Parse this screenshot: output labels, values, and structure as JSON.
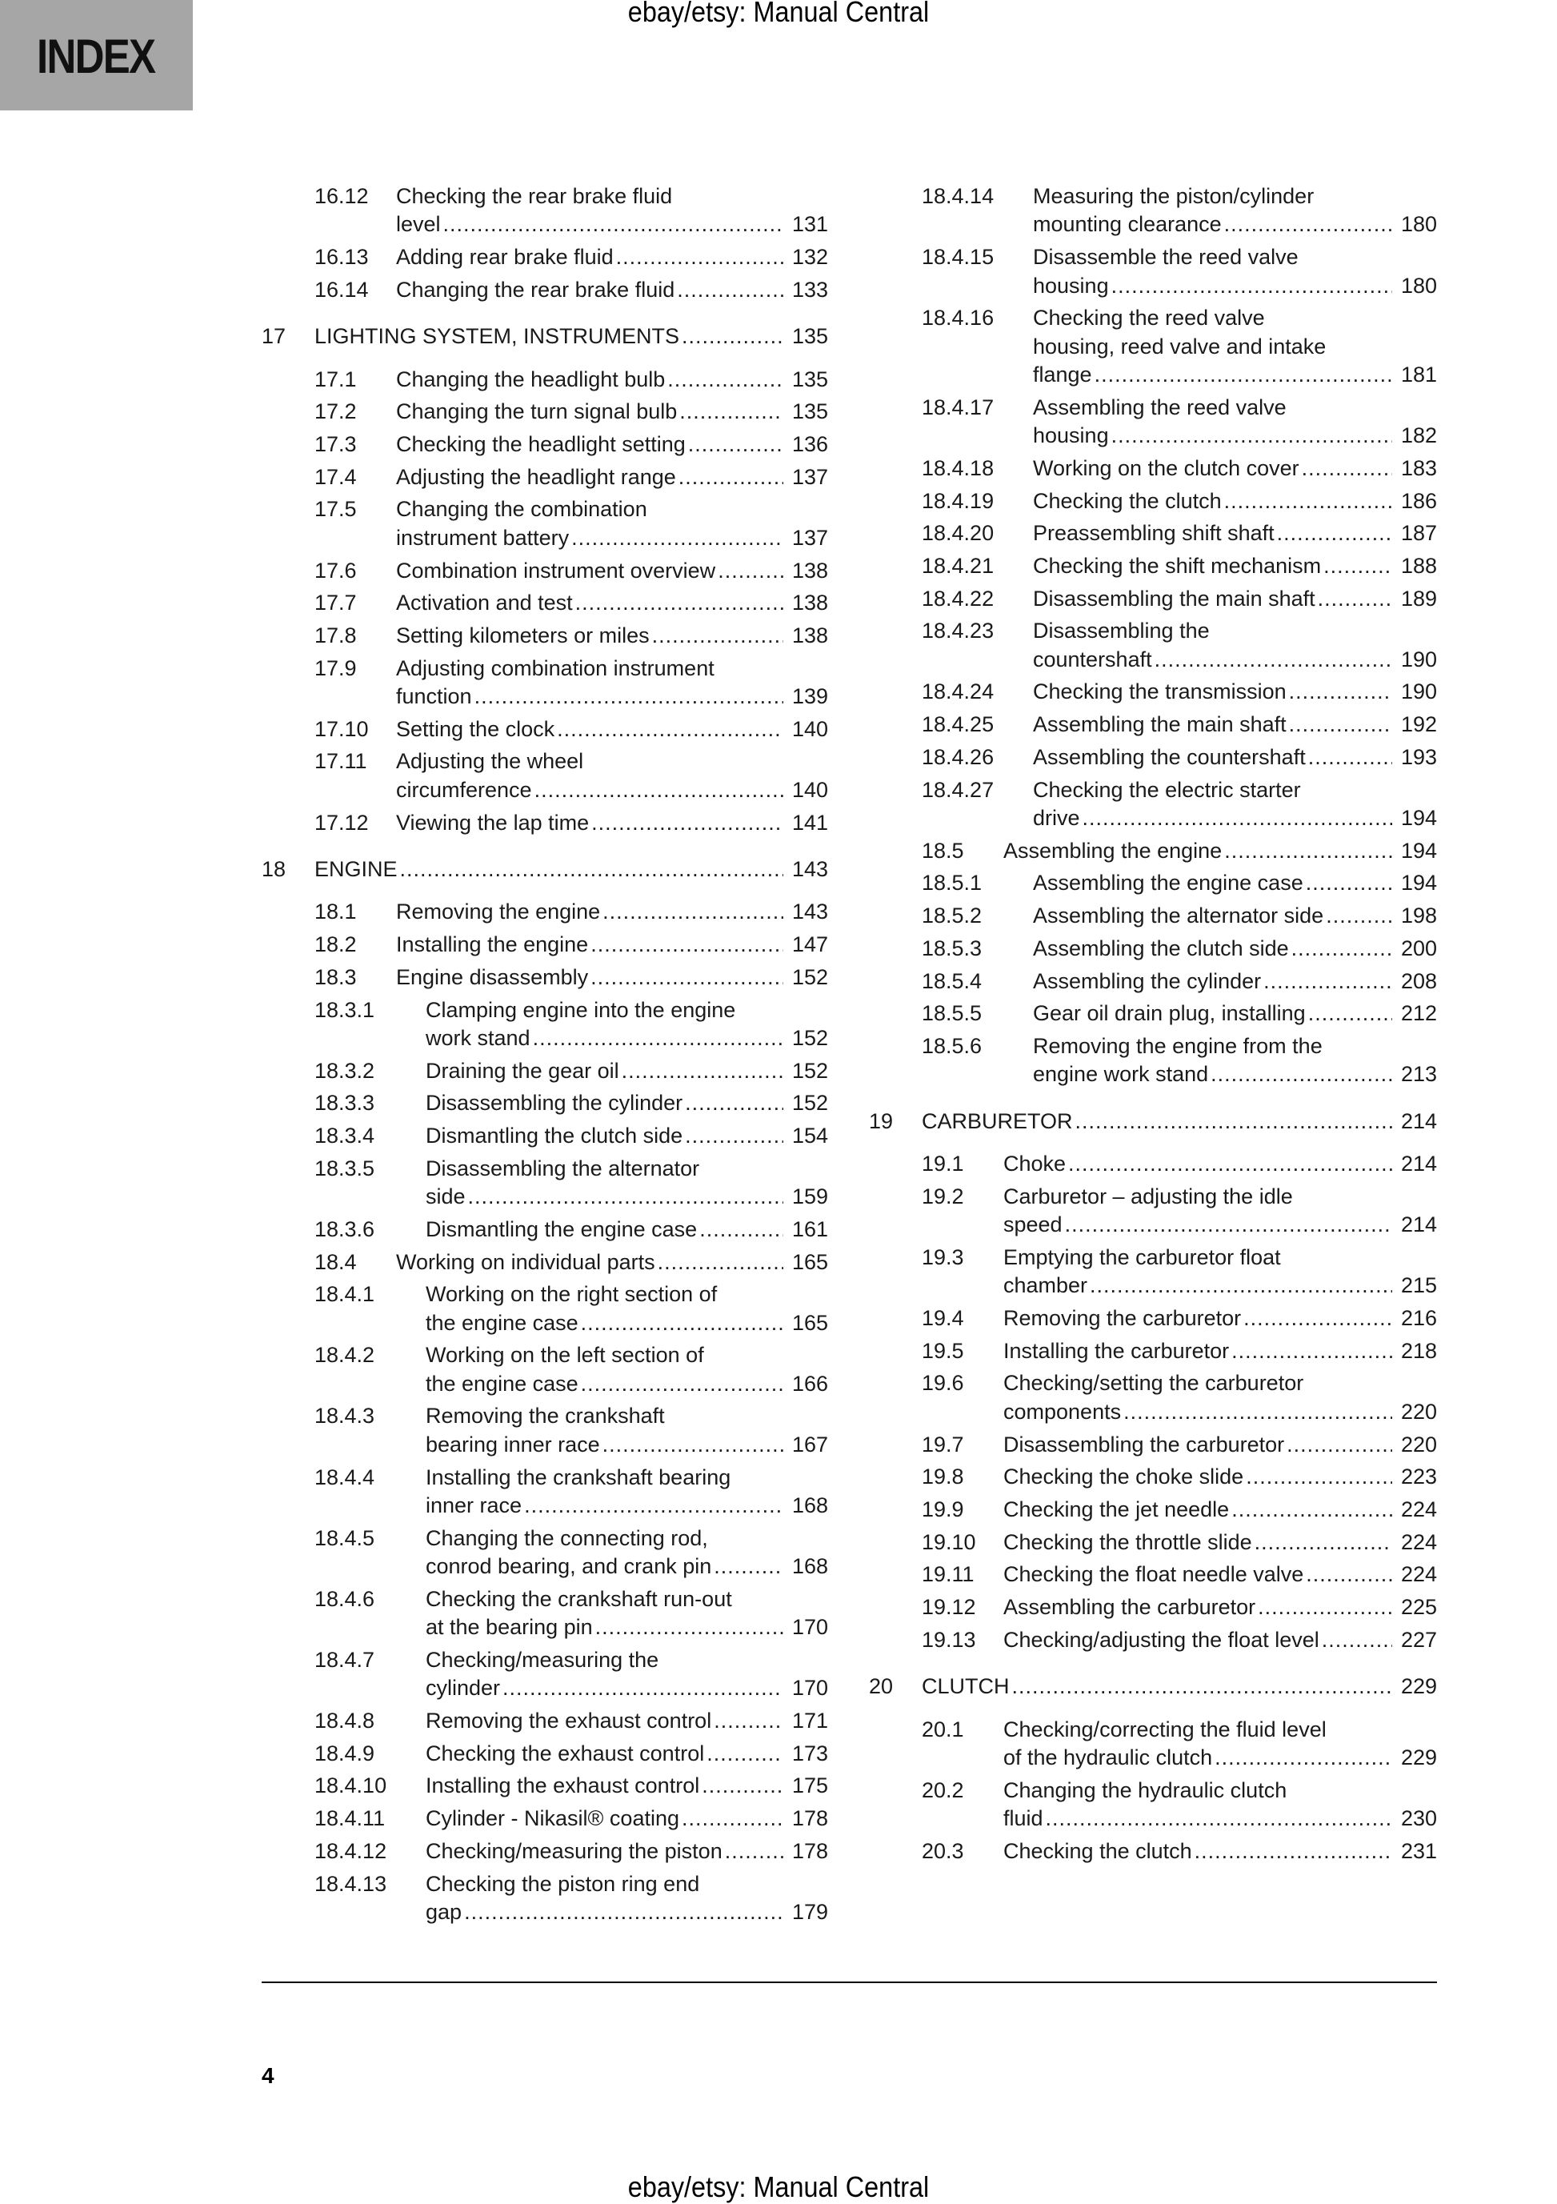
{
  "header": {
    "watermark": "ebay/etsy: Manual Central",
    "section_tab": "INDEX"
  },
  "footer": {
    "page_number": "4",
    "watermark": "ebay/etsy: Manual Central"
  },
  "colors": {
    "tab_background": "#a6a6a6",
    "text": "#1a1a1a"
  },
  "left": [
    {
      "num": "16.12",
      "level": 2,
      "title": [
        "Checking the rear brake fluid",
        "level"
      ],
      "page": "131"
    },
    {
      "num": "16.13",
      "level": 2,
      "title": [
        "Adding rear brake fluid"
      ],
      "page": "132"
    },
    {
      "num": "16.14",
      "level": 2,
      "title": [
        "Changing the rear brake fluid"
      ],
      "page": "133"
    },
    {
      "num": "17",
      "level": 1,
      "title": [
        "LIGHTING SYSTEM, INSTRUMENTS"
      ],
      "page": "135"
    },
    {
      "num": "17.1",
      "level": 2,
      "title": [
        "Changing the headlight bulb"
      ],
      "page": "135"
    },
    {
      "num": "17.2",
      "level": 2,
      "title": [
        "Changing the turn signal bulb"
      ],
      "page": "135"
    },
    {
      "num": "17.3",
      "level": 2,
      "title": [
        "Checking the headlight setting"
      ],
      "page": "136"
    },
    {
      "num": "17.4",
      "level": 2,
      "title": [
        "Adjusting the headlight range"
      ],
      "page": "137"
    },
    {
      "num": "17.5",
      "level": 2,
      "title": [
        "Changing the combination",
        "instrument battery"
      ],
      "page": "137"
    },
    {
      "num": "17.6",
      "level": 2,
      "title": [
        "Combination instrument overview"
      ],
      "page": "138"
    },
    {
      "num": "17.7",
      "level": 2,
      "title": [
        "Activation and test"
      ],
      "page": "138"
    },
    {
      "num": "17.8",
      "level": 2,
      "title": [
        "Setting kilometers or miles"
      ],
      "page": "138"
    },
    {
      "num": "17.9",
      "level": 2,
      "title": [
        "Adjusting combination instrument",
        "function"
      ],
      "page": "139"
    },
    {
      "num": "17.10",
      "level": 2,
      "title": [
        "Setting the clock"
      ],
      "page": "140"
    },
    {
      "num": "17.11",
      "level": 2,
      "title": [
        "Adjusting the wheel",
        "circumference"
      ],
      "page": "140"
    },
    {
      "num": "17.12",
      "level": 2,
      "title": [
        "Viewing the lap time"
      ],
      "page": "141"
    },
    {
      "num": "18",
      "level": 1,
      "title": [
        "ENGINE"
      ],
      "page": "143"
    },
    {
      "num": "18.1",
      "level": 2,
      "title": [
        "Removing the engine"
      ],
      "page": "143"
    },
    {
      "num": "18.2",
      "level": 2,
      "title": [
        "Installing the engine"
      ],
      "page": "147"
    },
    {
      "num": "18.3",
      "level": 2,
      "title": [
        "Engine disassembly"
      ],
      "page": "152"
    },
    {
      "num": "18.3.1",
      "level": 3,
      "title": [
        "Clamping engine into the engine",
        "work stand"
      ],
      "page": "152"
    },
    {
      "num": "18.3.2",
      "level": 3,
      "title": [
        "Draining the gear oil"
      ],
      "page": "152"
    },
    {
      "num": "18.3.3",
      "level": 3,
      "title": [
        "Disassembling the cylinder"
      ],
      "page": "152"
    },
    {
      "num": "18.3.4",
      "level": 3,
      "title": [
        "Dismantling the clutch side"
      ],
      "page": "154"
    },
    {
      "num": "18.3.5",
      "level": 3,
      "title": [
        "Disassembling the alternator",
        "side"
      ],
      "page": "159"
    },
    {
      "num": "18.3.6",
      "level": 3,
      "title": [
        "Dismantling the engine case"
      ],
      "page": "161"
    },
    {
      "num": "18.4",
      "level": 2,
      "title": [
        "Working on individual parts"
      ],
      "page": "165"
    },
    {
      "num": "18.4.1",
      "level": 3,
      "title": [
        "Working on the right section of",
        "the engine case"
      ],
      "page": "165"
    },
    {
      "num": "18.4.2",
      "level": 3,
      "title": [
        "Working on the left section of",
        "the engine case"
      ],
      "page": "166"
    },
    {
      "num": "18.4.3",
      "level": 3,
      "title": [
        "Removing the crankshaft",
        "bearing inner race"
      ],
      "page": "167"
    },
    {
      "num": "18.4.4",
      "level": 3,
      "title": [
        "Installing the crankshaft bearing",
        "inner race"
      ],
      "page": "168"
    },
    {
      "num": "18.4.5",
      "level": 3,
      "title": [
        "Changing the connecting rod,",
        "conrod bearing, and crank pin"
      ],
      "page": "168"
    },
    {
      "num": "18.4.6",
      "level": 3,
      "title": [
        "Checking the crankshaft run-out",
        "at the bearing pin"
      ],
      "page": "170"
    },
    {
      "num": "18.4.7",
      "level": 3,
      "title": [
        "Checking/measuring the",
        "cylinder"
      ],
      "page": "170"
    },
    {
      "num": "18.4.8",
      "level": 3,
      "title": [
        "Removing the exhaust control"
      ],
      "page": "171"
    },
    {
      "num": "18.4.9",
      "level": 3,
      "title": [
        "Checking the exhaust control"
      ],
      "page": "173"
    },
    {
      "num": "18.4.10",
      "level": 3,
      "title": [
        "Installing the exhaust control"
      ],
      "page": "175"
    },
    {
      "num": "18.4.11",
      "level": 3,
      "title": [
        "Cylinder - Nikasil® coating"
      ],
      "page": "178"
    },
    {
      "num": "18.4.12",
      "level": 3,
      "title": [
        "Checking/measuring the piston"
      ],
      "page": "178"
    },
    {
      "num": "18.4.13",
      "level": 3,
      "title": [
        "Checking the piston ring end",
        "gap"
      ],
      "page": "179"
    }
  ],
  "right": [
    {
      "num": "18.4.14",
      "level": 3,
      "title": [
        "Measuring the piston/cylinder",
        "mounting clearance"
      ],
      "page": "180"
    },
    {
      "num": "18.4.15",
      "level": 3,
      "title": [
        "Disassemble the reed valve",
        "housing"
      ],
      "page": "180"
    },
    {
      "num": "18.4.16",
      "level": 3,
      "title": [
        "Checking the reed valve",
        "housing, reed valve and intake",
        "flange"
      ],
      "page": "181"
    },
    {
      "num": "18.4.17",
      "level": 3,
      "title": [
        "Assembling the reed valve",
        "housing"
      ],
      "page": "182"
    },
    {
      "num": "18.4.18",
      "level": 3,
      "title": [
        "Working on the clutch cover"
      ],
      "page": "183"
    },
    {
      "num": "18.4.19",
      "level": 3,
      "title": [
        "Checking the clutch"
      ],
      "page": "186"
    },
    {
      "num": "18.4.20",
      "level": 3,
      "title": [
        "Preassembling shift shaft"
      ],
      "page": "187"
    },
    {
      "num": "18.4.21",
      "level": 3,
      "title": [
        "Checking the shift mechanism"
      ],
      "page": "188"
    },
    {
      "num": "18.4.22",
      "level": 3,
      "title": [
        "Disassembling the main shaft"
      ],
      "page": "189"
    },
    {
      "num": "18.4.23",
      "level": 3,
      "title": [
        "Disassembling the",
        "countershaft"
      ],
      "page": "190"
    },
    {
      "num": "18.4.24",
      "level": 3,
      "title": [
        "Checking the transmission"
      ],
      "page": "190"
    },
    {
      "num": "18.4.25",
      "level": 3,
      "title": [
        "Assembling the main shaft"
      ],
      "page": "192"
    },
    {
      "num": "18.4.26",
      "level": 3,
      "title": [
        "Assembling the countershaft"
      ],
      "page": "193"
    },
    {
      "num": "18.4.27",
      "level": 3,
      "title": [
        "Checking the electric starter",
        "drive"
      ],
      "page": "194"
    },
    {
      "num": "18.5",
      "level": 2,
      "title": [
        "Assembling the engine"
      ],
      "page": "194"
    },
    {
      "num": "18.5.1",
      "level": 3,
      "title": [
        "Assembling the engine case"
      ],
      "page": "194"
    },
    {
      "num": "18.5.2",
      "level": 3,
      "title": [
        "Assembling the alternator side"
      ],
      "page": "198"
    },
    {
      "num": "18.5.3",
      "level": 3,
      "title": [
        "Assembling the clutch side"
      ],
      "page": "200"
    },
    {
      "num": "18.5.4",
      "level": 3,
      "title": [
        "Assembling the cylinder"
      ],
      "page": "208"
    },
    {
      "num": "18.5.5",
      "level": 3,
      "title": [
        "Gear oil drain plug, installing"
      ],
      "page": "212"
    },
    {
      "num": "18.5.6",
      "level": 3,
      "title": [
        "Removing the engine from the",
        "engine work stand"
      ],
      "page": "213"
    },
    {
      "num": "19",
      "level": 1,
      "title": [
        "CARBURETOR"
      ],
      "page": "214"
    },
    {
      "num": "19.1",
      "level": 2,
      "title": [
        "Choke"
      ],
      "page": "214"
    },
    {
      "num": "19.2",
      "level": 2,
      "title": [
        "Carburetor – adjusting the idle",
        "speed"
      ],
      "page": "214"
    },
    {
      "num": "19.3",
      "level": 2,
      "title": [
        "Emptying the carburetor float",
        "chamber"
      ],
      "page": "215"
    },
    {
      "num": "19.4",
      "level": 2,
      "title": [
        "Removing the carburetor"
      ],
      "page": "216"
    },
    {
      "num": "19.5",
      "level": 2,
      "title": [
        "Installing the carburetor"
      ],
      "page": "218"
    },
    {
      "num": "19.6",
      "level": 2,
      "title": [
        "Checking/setting the carburetor",
        "components"
      ],
      "page": "220"
    },
    {
      "num": "19.7",
      "level": 2,
      "title": [
        "Disassembling the carburetor"
      ],
      "page": "220"
    },
    {
      "num": "19.8",
      "level": 2,
      "title": [
        "Checking the choke slide"
      ],
      "page": "223"
    },
    {
      "num": "19.9",
      "level": 2,
      "title": [
        "Checking the jet needle"
      ],
      "page": "224"
    },
    {
      "num": "19.10",
      "level": 2,
      "title": [
        "Checking the throttle slide"
      ],
      "page": "224"
    },
    {
      "num": "19.11",
      "level": 2,
      "title": [
        "Checking the float needle valve"
      ],
      "page": "224"
    },
    {
      "num": "19.12",
      "level": 2,
      "title": [
        "Assembling the carburetor"
      ],
      "page": "225"
    },
    {
      "num": "19.13",
      "level": 2,
      "title": [
        "Checking/adjusting the float level"
      ],
      "page": "227"
    },
    {
      "num": "20",
      "level": 1,
      "title": [
        "CLUTCH"
      ],
      "page": "229"
    },
    {
      "num": "20.1",
      "level": 2,
      "title": [
        "Checking/correcting the fluid level",
        "of the hydraulic clutch"
      ],
      "page": "229"
    },
    {
      "num": "20.2",
      "level": 2,
      "title": [
        "Changing the hydraulic clutch",
        "fluid"
      ],
      "page": "230"
    },
    {
      "num": "20.3",
      "level": 2,
      "title": [
        "Checking the clutch"
      ],
      "page": "231"
    }
  ]
}
